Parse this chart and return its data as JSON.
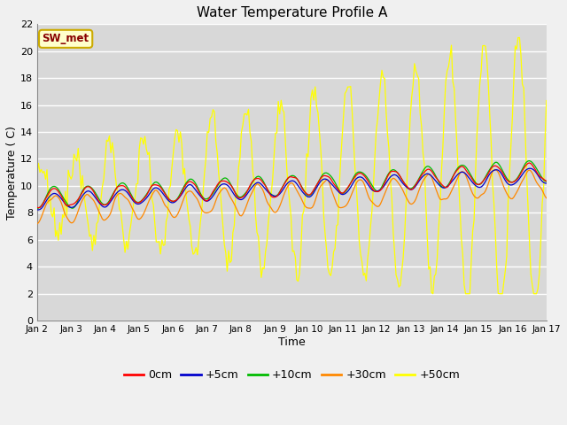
{
  "title": "Water Temperature Profile A",
  "xlabel": "Time",
  "ylabel": "Temperature ( C)",
  "ylim": [
    0,
    22
  ],
  "yticks": [
    0,
    2,
    4,
    6,
    8,
    10,
    12,
    14,
    16,
    18,
    20,
    22
  ],
  "xtick_labels": [
    "Jan 2",
    "Jan 3",
    "Jan 4",
    "Jan 5",
    "Jan 6",
    "Jan 7",
    "Jan 8",
    "Jan 9",
    "Jan 10",
    "Jan 11",
    "Jan 12",
    "Jan 13",
    "Jan 14",
    "Jan 15",
    "Jan 16",
    "Jan 17"
  ],
  "annotation_text": "SW_met",
  "annotation_bg": "#ffffcc",
  "annotation_edge": "#ccaa00",
  "annotation_color": "#880000",
  "legend_labels": [
    "0cm",
    "+5cm",
    "+10cm",
    "+30cm",
    "+50cm"
  ],
  "line_colors": [
    "#ff0000",
    "#0000cc",
    "#00bb00",
    "#ff8800",
    "#ffff00"
  ],
  "plot_bg": "#d8d8d8",
  "fig_bg": "#f0f0f0",
  "grid_color": "#ffffff",
  "n_days": 15,
  "pts_per_day": 24
}
